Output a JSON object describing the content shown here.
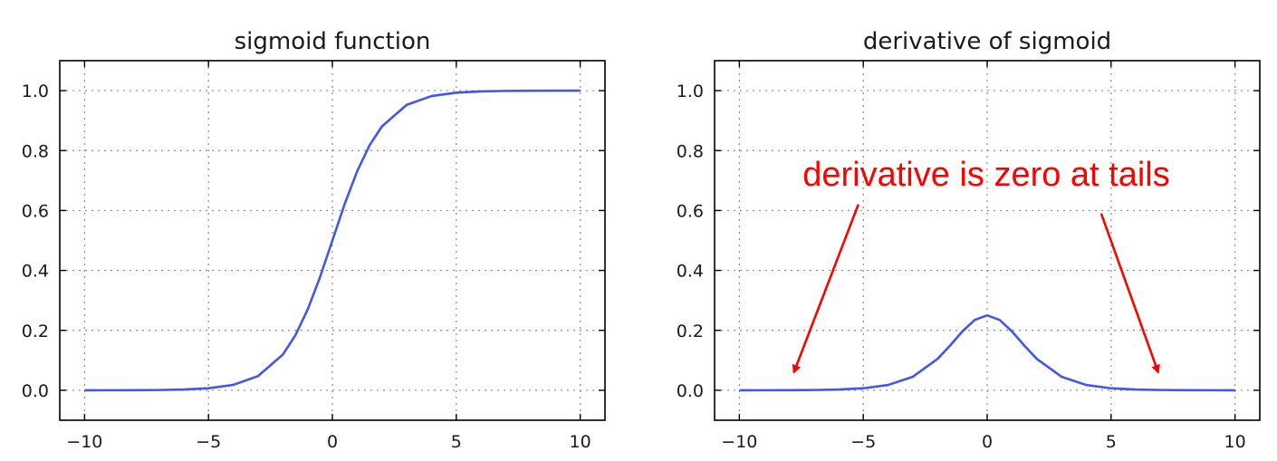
{
  "chart_data": [
    {
      "type": "line",
      "title": "sigmoid function",
      "xlabel": "",
      "ylabel": "",
      "xlim": [
        -11,
        11
      ],
      "ylim": [
        -0.1,
        1.1
      ],
      "xticks": [
        -10,
        -5,
        0,
        5,
        10
      ],
      "yticks": [
        0.0,
        0.2,
        0.4,
        0.6,
        0.8,
        1.0
      ],
      "xtick_labels": [
        "−10",
        "−5",
        "0",
        "5",
        "10"
      ],
      "ytick_labels": [
        "0.0",
        "0.2",
        "0.4",
        "0.6",
        "0.8",
        "1.0"
      ],
      "grid": true,
      "color": "#4455ee",
      "series": [
        {
          "x": [
            -10,
            -9,
            -8,
            -7,
            -6,
            -5,
            -4,
            -3,
            -2,
            -1.5,
            -1,
            -0.5,
            0,
            0.5,
            1,
            1.5,
            2,
            3,
            4,
            5,
            6,
            7,
            8,
            9,
            10
          ],
          "values": [
            0.0,
            0.0001,
            0.0003,
            0.0009,
            0.0025,
            0.0067,
            0.018,
            0.0474,
            0.1192,
            0.1824,
            0.2689,
            0.3775,
            0.5,
            0.6225,
            0.7311,
            0.8176,
            0.8808,
            0.9526,
            0.982,
            0.9933,
            0.9975,
            0.9991,
            0.9997,
            0.9999,
            1.0
          ]
        }
      ]
    },
    {
      "type": "line",
      "title": "derivative of sigmoid",
      "xlabel": "",
      "ylabel": "",
      "xlim": [
        -11,
        11
      ],
      "ylim": [
        -0.1,
        1.1
      ],
      "xticks": [
        -10,
        -5,
        0,
        5,
        10
      ],
      "yticks": [
        0.0,
        0.2,
        0.4,
        0.6,
        0.8,
        1.0
      ],
      "xtick_labels": [
        "−10",
        "−5",
        "0",
        "5",
        "10"
      ],
      "ytick_labels": [
        "0.0",
        "0.2",
        "0.4",
        "0.6",
        "0.8",
        "1.0"
      ],
      "grid": true,
      "color": "#4455ee",
      "series": [
        {
          "x": [
            -10,
            -9,
            -8,
            -7,
            -6,
            -5,
            -4,
            -3,
            -2,
            -1.5,
            -1,
            -0.5,
            0,
            0.5,
            1,
            1.5,
            2,
            3,
            4,
            5,
            6,
            7,
            8,
            9,
            10
          ],
          "values": [
            0.0,
            0.0001,
            0.0003,
            0.0009,
            0.0025,
            0.0066,
            0.0177,
            0.0452,
            0.105,
            0.1491,
            0.1966,
            0.235,
            0.25,
            0.235,
            0.1966,
            0.1491,
            0.105,
            0.0452,
            0.0177,
            0.0066,
            0.0025,
            0.0009,
            0.0003,
            0.0001,
            0.0
          ]
        }
      ],
      "annotation": {
        "text": "derivative is zero at tails",
        "color": "#ff0000",
        "arrows": [
          {
            "from": [
              -5.2,
              0.62
            ],
            "to": [
              -7.8,
              0.06
            ]
          },
          {
            "from": [
              4.6,
              0.59
            ],
            "to": [
              6.9,
              0.06
            ]
          }
        ]
      }
    }
  ]
}
